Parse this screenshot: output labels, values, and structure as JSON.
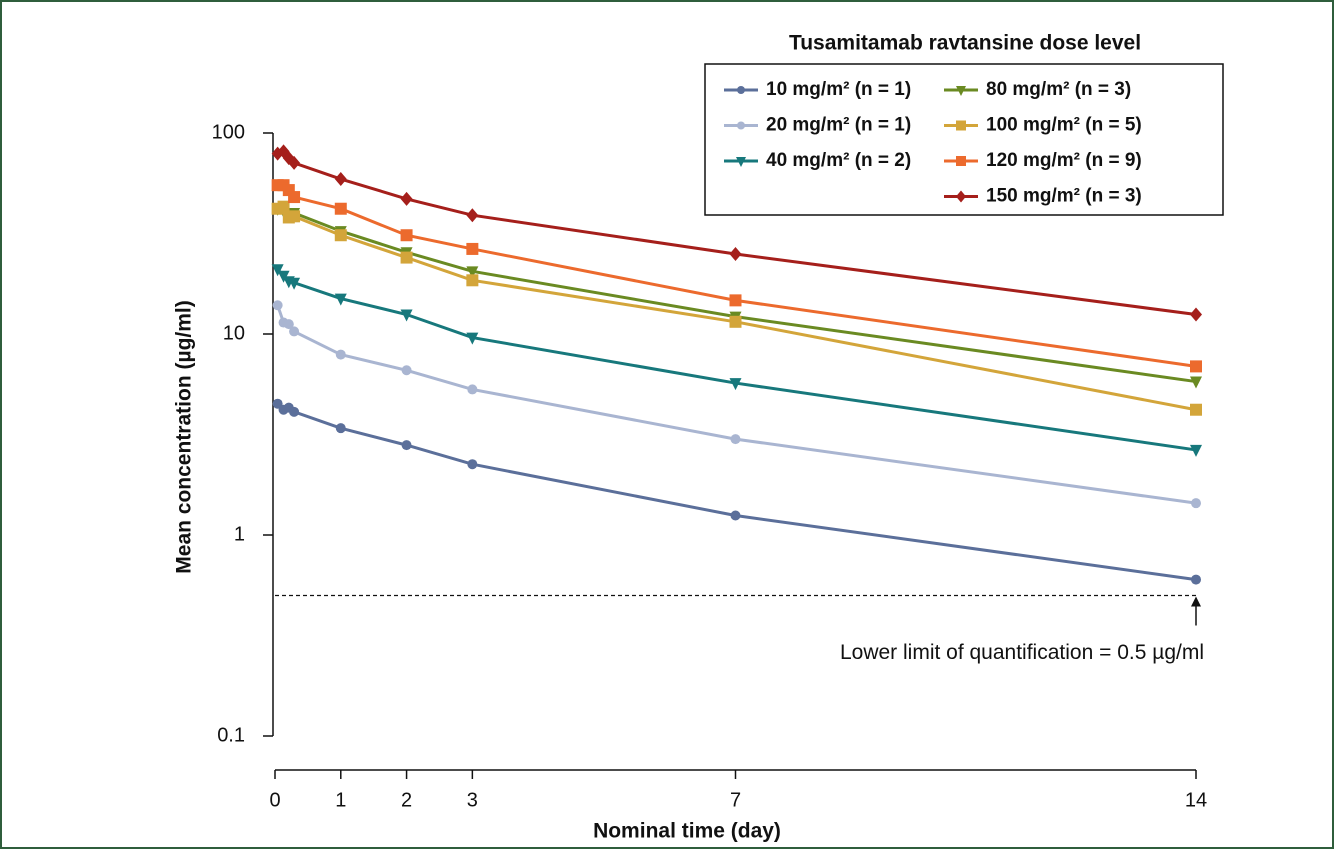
{
  "chart_data": {
    "type": "line",
    "x_label": "Nominal time (day)",
    "y_label": "Mean concentration (µg/ml)",
    "legend_title": "Tusamitamab ravtansine dose level",
    "legend": "upper right",
    "yscale": "log",
    "xlim": [
      0,
      14
    ],
    "xticks": [
      0,
      1,
      2,
      3,
      7,
      14
    ],
    "ylim": [
      0.1,
      100
    ],
    "yticks": [
      0.1,
      1,
      10,
      100
    ],
    "x": [
      0.04,
      0.13,
      0.21,
      0.29,
      1,
      2,
      3,
      7,
      14
    ],
    "series": [
      {
        "name": "10 mg/m² (n = 1)",
        "color": "#5b6f9a",
        "marker": "circle",
        "values": [
          4.5,
          4.2,
          4.3,
          4.1,
          3.4,
          2.8,
          2.25,
          1.25,
          0.6
        ]
      },
      {
        "name": "20 mg/m² (n = 1)",
        "color": "#a9b5d1",
        "marker": "circle",
        "values": [
          13.9,
          11.4,
          11.2,
          10.3,
          7.9,
          6.6,
          5.3,
          3.0,
          1.44
        ]
      },
      {
        "name": "40 mg/m² (n = 2)",
        "color": "#17787c",
        "marker": "triangle-down",
        "values": [
          21,
          19.5,
          18.3,
          18,
          15,
          12.5,
          9.6,
          5.7,
          2.65
        ]
      },
      {
        "name": "80 mg/m² (n = 3)",
        "color": "#6a8a22",
        "marker": "triangle-down",
        "values": [
          42,
          41,
          39,
          40,
          32.5,
          25.5,
          20.5,
          12.2,
          5.8
        ]
      },
      {
        "name": "100 mg/m² (n = 5)",
        "color": "#d3a53a",
        "marker": "square",
        "values": [
          42,
          43,
          38,
          38.5,
          31,
          24,
          18.5,
          11.5,
          4.2
        ]
      },
      {
        "name": "120 mg/m² (n = 9)",
        "color": "#ec6a2d",
        "marker": "square",
        "values": [
          55,
          55,
          52,
          48,
          42,
          31,
          26.5,
          14.7,
          6.9
        ]
      },
      {
        "name": "150 mg/m² (n = 3)",
        "color": "#a51f1b",
        "marker": "diamond",
        "values": [
          79,
          81,
          75,
          71,
          59,
          47,
          39,
          25,
          12.5
        ]
      }
    ],
    "reference_line": {
      "value": 0.5,
      "label": "Lower limit of quantification = 0.5 µg/ml"
    }
  }
}
